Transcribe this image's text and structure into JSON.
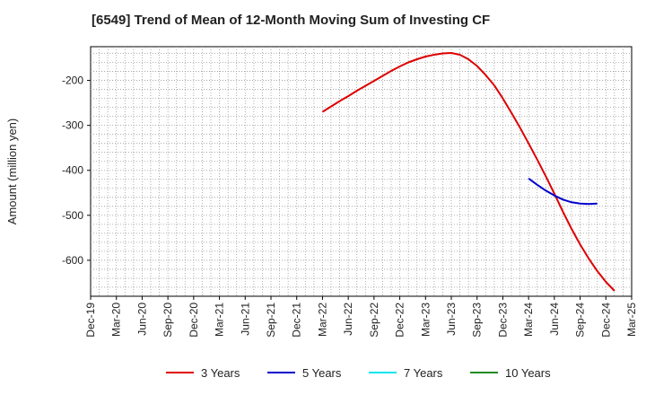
{
  "chart_data": {
    "type": "line",
    "title": "[6549]  Trend of Mean of 12-Month Moving Sum of Investing CF",
    "ylabel": "Amount (million yen)",
    "xlabel": "",
    "x_ticks": [
      "Dec-19",
      "Mar-20",
      "Jun-20",
      "Sep-20",
      "Dec-20",
      "Mar-21",
      "Jun-21",
      "Sep-21",
      "Dec-21",
      "Mar-22",
      "Jun-22",
      "Sep-22",
      "Dec-22",
      "Mar-23",
      "Jun-23",
      "Sep-23",
      "Dec-23",
      "Mar-24",
      "Jun-24",
      "Sep-24",
      "Dec-24",
      "Mar-25"
    ],
    "y_ticks": [
      -200,
      -300,
      -400,
      -500,
      -600
    ],
    "ylim": [
      -680,
      -125
    ],
    "grid": true,
    "legend_position": "bottom",
    "series": [
      {
        "name": "3 Years",
        "color": "#dd0000",
        "points": [
          [
            "2022-03",
            -270
          ],
          [
            "2022-04",
            -258
          ],
          [
            "2022-05",
            -246
          ],
          [
            "2022-06",
            -235
          ],
          [
            "2022-07",
            -223
          ],
          [
            "2022-08",
            -212
          ],
          [
            "2022-09",
            -201
          ],
          [
            "2022-10",
            -190
          ],
          [
            "2022-11",
            -179
          ],
          [
            "2022-12",
            -169
          ],
          [
            "2023-01",
            -160
          ],
          [
            "2023-02",
            -153
          ],
          [
            "2023-03",
            -147
          ],
          [
            "2023-04",
            -143
          ],
          [
            "2023-05",
            -140
          ],
          [
            "2023-06",
            -139
          ],
          [
            "2023-07",
            -143
          ],
          [
            "2023-08",
            -153
          ],
          [
            "2023-09",
            -168
          ],
          [
            "2023-10",
            -188
          ],
          [
            "2023-11",
            -211
          ],
          [
            "2023-12",
            -240
          ],
          [
            "2024-01",
            -272
          ],
          [
            "2024-02",
            -305
          ],
          [
            "2024-03",
            -340
          ],
          [
            "2024-04",
            -376
          ],
          [
            "2024-05",
            -413
          ],
          [
            "2024-06",
            -452
          ],
          [
            "2024-07",
            -492
          ],
          [
            "2024-08",
            -530
          ],
          [
            "2024-09",
            -565
          ],
          [
            "2024-10",
            -596
          ],
          [
            "2024-11",
            -624
          ],
          [
            "2024-12",
            -648
          ],
          [
            "2025-01",
            -668
          ]
        ]
      },
      {
        "name": "5 Years",
        "color": "#0000cc",
        "points": [
          [
            "2024-03",
            -418
          ],
          [
            "2024-04",
            -432
          ],
          [
            "2024-05",
            -445
          ],
          [
            "2024-06",
            -456
          ],
          [
            "2024-07",
            -465
          ],
          [
            "2024-08",
            -471
          ],
          [
            "2024-09",
            -474
          ],
          [
            "2024-10",
            -475
          ],
          [
            "2024-11",
            -474
          ]
        ]
      },
      {
        "name": "7 Years",
        "color": "#00e5ee",
        "points": []
      },
      {
        "name": "10 Years",
        "color": "#228b22",
        "points": []
      }
    ]
  }
}
